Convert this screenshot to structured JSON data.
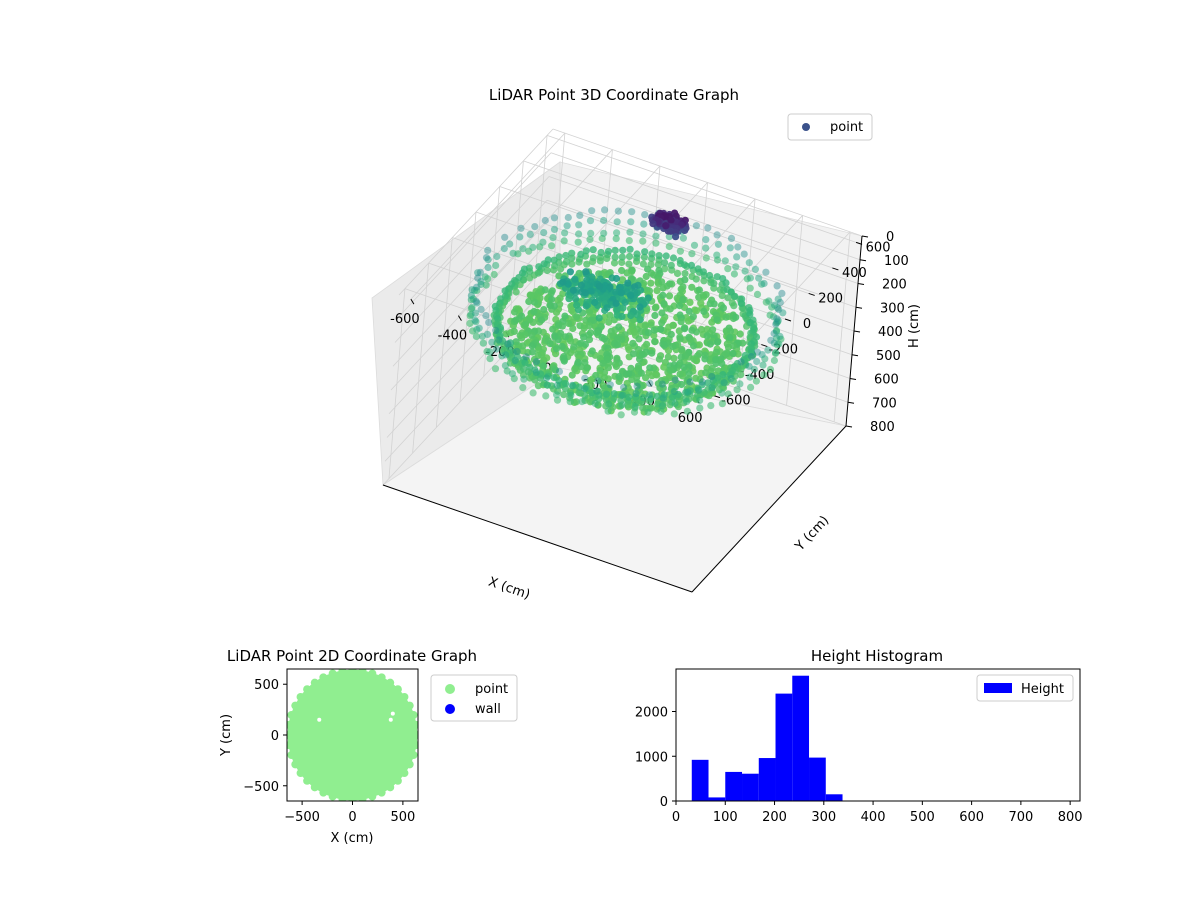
{
  "chart_data": [
    {
      "type": "scatter3d",
      "title": "LiDAR Point 3D Coordinate Graph",
      "xlabel": "X (cm)",
      "ylabel": "Y (cm)",
      "zlabel": "H (cm)",
      "xlim": [
        -650,
        650
      ],
      "ylim": [
        -650,
        650
      ],
      "zlim": [
        800,
        0
      ],
      "xticks": [
        -600,
        -400,
        -200,
        0,
        200,
        400,
        600
      ],
      "yticks": [
        -600,
        -400,
        -200,
        0,
        200,
        400,
        600
      ],
      "zticks": [
        0,
        100,
        200,
        300,
        400,
        500,
        600,
        700,
        800
      ],
      "series": [
        {
          "name": "point",
          "color": "#3b528b",
          "colormap": "viridis"
        }
      ],
      "legend_position": "top-right",
      "grid": true
    },
    {
      "type": "scatter",
      "title": "LiDAR Point 2D Coordinate Graph",
      "xlabel": "X (cm)",
      "ylabel": "Y (cm)",
      "xlim": [
        -650,
        650
      ],
      "ylim": [
        -650,
        650
      ],
      "xticks": [
        -500,
        0,
        500
      ],
      "yticks": [
        -500,
        0,
        500
      ],
      "series": [
        {
          "name": "point",
          "color": "#90ee90"
        },
        {
          "name": "wall",
          "color": "#0000ff"
        }
      ],
      "legend_position": "outside-right"
    },
    {
      "type": "bar",
      "title": "Height Histogram",
      "xlabel": "",
      "ylabel": "",
      "xlim": [
        0,
        820
      ],
      "ylim": [
        0,
        2950
      ],
      "xticks": [
        0,
        100,
        200,
        300,
        400,
        500,
        600,
        700,
        800
      ],
      "yticks": [
        0,
        1000,
        2000
      ],
      "bin_edges": [
        32,
        66,
        100,
        134,
        168,
        202,
        236,
        270,
        304,
        338
      ],
      "values": [
        920,
        80,
        650,
        610,
        960,
        2400,
        2800,
        970,
        150
      ],
      "series": [
        {
          "name": "Height",
          "color": "#0000ff"
        }
      ],
      "legend_position": "top-right"
    }
  ]
}
